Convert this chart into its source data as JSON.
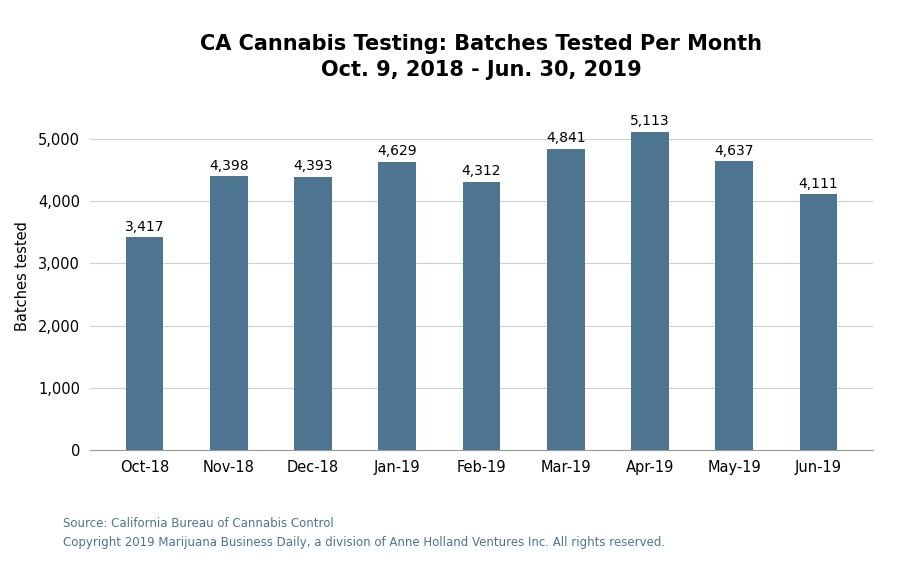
{
  "title_line1": "CA Cannabis Testing: Batches Tested Per Month",
  "title_line2": "Oct. 9, 2018 - Jun. 30, 2019",
  "categories": [
    "Oct-18",
    "Nov-18",
    "Dec-18",
    "Jan-19",
    "Feb-19",
    "Mar-19",
    "Apr-19",
    "May-19",
    "Jun-19"
  ],
  "values": [
    3417,
    4398,
    4393,
    4629,
    4312,
    4841,
    5113,
    4637,
    4111
  ],
  "bar_color": "#4d7490",
  "ylabel": "Batches tested",
  "ylim": [
    0,
    5600
  ],
  "yticks": [
    0,
    1000,
    2000,
    3000,
    4000,
    5000
  ],
  "source_line1": "Source: California Bureau of Cannabis Control",
  "source_line2": "Copyright 2019 Marijuana Business Daily, a division of Anne Holland Ventures Inc. All rights reserved.",
  "source_color": "#4d7490",
  "background_color": "#ffffff",
  "grid_color": "#d0d0d0",
  "title_fontsize": 15,
  "label_fontsize": 10.5,
  "tick_fontsize": 10.5,
  "source_fontsize": 8.5,
  "bar_label_fontsize": 10,
  "bar_width": 0.45
}
